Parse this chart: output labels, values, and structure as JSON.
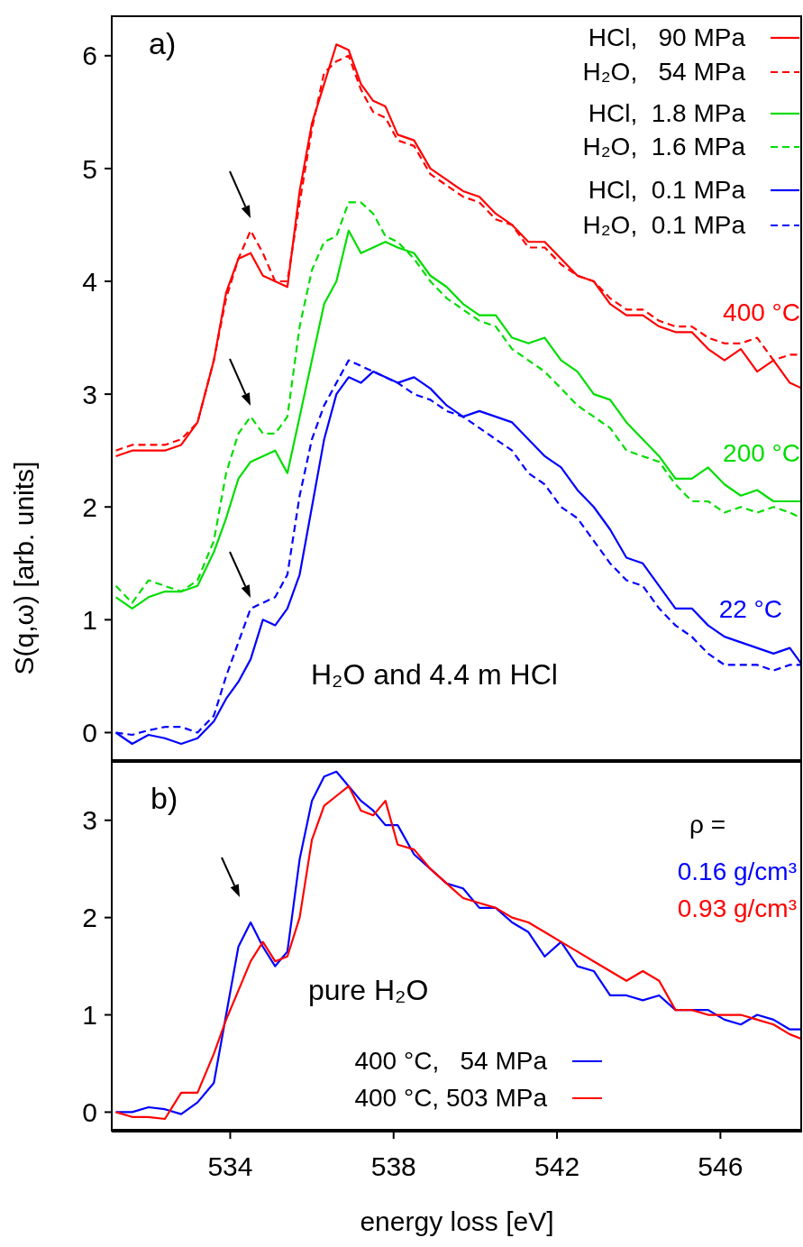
{
  "chart_data": [
    {
      "type": "line",
      "ylabel": "S(q,ω) [arb. units]",
      "xlim": [
        531.1,
        548
      ],
      "xticks": [
        534,
        538,
        542,
        546
      ],
      "ylim": [
        -0.26,
        6.35
      ],
      "yticks": [
        0,
        1,
        2,
        3,
        4,
        5,
        6
      ],
      "tick_labels": "y",
      "legend": "top right",
      "x": [
        531.2,
        531.6,
        532.0,
        532.4,
        532.8,
        533.2,
        533.6,
        533.9,
        534.2,
        534.5,
        534.8,
        535.1,
        535.4,
        535.7,
        536.0,
        536.3,
        536.6,
        536.9,
        537.2,
        537.5,
        537.8,
        538.1,
        538.5,
        538.9,
        539.3,
        539.7,
        540.1,
        540.5,
        540.9,
        541.3,
        541.7,
        542.1,
        542.5,
        542.9,
        543.3,
        543.7,
        544.1,
        544.5,
        544.9,
        545.3,
        545.7,
        546.1,
        546.5,
        546.9,
        547.3,
        547.7,
        548.0
      ],
      "annotations": [
        "a)",
        "400 °C",
        "200 °C",
        "22 °C",
        "H₂O and 4.4 m HCl"
      ],
      "series": [
        {
          "name": "HCl,   90 MPa",
          "color": "#ff0000",
          "line_style": "solid",
          "values": [
            2.45,
            2.5,
            2.5,
            2.5,
            2.55,
            2.75,
            3.3,
            3.9,
            4.2,
            4.25,
            4.05,
            4.0,
            3.95,
            4.8,
            5.4,
            5.75,
            6.1,
            6.05,
            5.75,
            5.6,
            5.55,
            5.3,
            5.25,
            5.0,
            4.9,
            4.8,
            4.75,
            4.6,
            4.5,
            4.35,
            4.35,
            4.2,
            4.05,
            4.0,
            3.8,
            3.7,
            3.7,
            3.6,
            3.55,
            3.55,
            3.4,
            3.3,
            3.4,
            3.2,
            3.3,
            3.1,
            3.05
          ]
        },
        {
          "name": "H₂O,   54 MPa",
          "color": "#ff0000",
          "line_style": "dashed",
          "values": [
            2.5,
            2.55,
            2.55,
            2.55,
            2.6,
            2.75,
            3.3,
            3.85,
            4.2,
            4.45,
            4.25,
            4.0,
            4.0,
            4.7,
            5.35,
            5.85,
            5.95,
            6.0,
            5.7,
            5.5,
            5.45,
            5.25,
            5.2,
            4.95,
            4.85,
            4.75,
            4.7,
            4.55,
            4.5,
            4.3,
            4.3,
            4.15,
            4.05,
            4.0,
            3.85,
            3.75,
            3.75,
            3.65,
            3.6,
            3.6,
            3.5,
            3.45,
            3.45,
            3.5,
            3.3,
            3.35,
            3.35
          ]
        },
        {
          "name": "HCl,  1.8 MPa",
          "color": "#00dd00",
          "line_style": "solid",
          "values": [
            1.2,
            1.1,
            1.2,
            1.25,
            1.25,
            1.3,
            1.6,
            1.9,
            2.25,
            2.4,
            2.45,
            2.5,
            2.3,
            2.8,
            3.3,
            3.8,
            4.0,
            4.45,
            4.25,
            4.3,
            4.35,
            4.3,
            4.25,
            4.05,
            3.95,
            3.8,
            3.7,
            3.7,
            3.5,
            3.45,
            3.5,
            3.3,
            3.2,
            3.0,
            2.95,
            2.75,
            2.6,
            2.45,
            2.25,
            2.25,
            2.35,
            2.2,
            2.1,
            2.15,
            2.05,
            2.05,
            2.05
          ]
        },
        {
          "name": "H₂O,  1.6 MPa",
          "color": "#00dd00",
          "line_style": "dashed",
          "values": [
            1.3,
            1.15,
            1.35,
            1.3,
            1.25,
            1.35,
            1.7,
            2.3,
            2.65,
            2.8,
            2.65,
            2.65,
            2.8,
            3.6,
            4.1,
            4.35,
            4.4,
            4.7,
            4.7,
            4.6,
            4.4,
            4.35,
            4.2,
            4.0,
            3.85,
            3.75,
            3.65,
            3.6,
            3.4,
            3.3,
            3.2,
            3.05,
            2.9,
            2.8,
            2.7,
            2.5,
            2.45,
            2.4,
            2.2,
            2.05,
            2.05,
            1.95,
            2.0,
            1.95,
            2.0,
            1.95,
            1.9
          ]
        },
        {
          "name": "HCl,  0.1 MPa",
          "color": "#0000ff",
          "line_style": "solid",
          "values": [
            0.0,
            -0.1,
            -0.02,
            -0.05,
            -0.1,
            -0.05,
            0.1,
            0.3,
            0.45,
            0.65,
            1.0,
            0.95,
            1.1,
            1.4,
            2.0,
            2.6,
            3.0,
            3.15,
            3.1,
            3.2,
            3.15,
            3.1,
            3.15,
            3.05,
            2.9,
            2.8,
            2.85,
            2.8,
            2.75,
            2.6,
            2.45,
            2.35,
            2.15,
            2.0,
            1.8,
            1.55,
            1.5,
            1.3,
            1.1,
            1.1,
            0.95,
            0.85,
            0.8,
            0.75,
            0.7,
            0.75,
            0.6
          ]
        },
        {
          "name": "H₂O,  0.1 MPa",
          "color": "#0000ff",
          "line_style": "dashed",
          "values": [
            0.0,
            -0.02,
            0.02,
            0.05,
            0.05,
            0.0,
            0.15,
            0.5,
            0.8,
            1.1,
            1.15,
            1.2,
            1.4,
            2.1,
            2.6,
            2.9,
            3.1,
            3.3,
            3.25,
            3.2,
            3.15,
            3.1,
            3.0,
            2.95,
            2.85,
            2.8,
            2.7,
            2.6,
            2.5,
            2.3,
            2.2,
            2.0,
            1.9,
            1.7,
            1.5,
            1.35,
            1.3,
            1.1,
            0.95,
            0.85,
            0.7,
            0.6,
            0.6,
            0.6,
            0.55,
            0.6,
            0.6
          ]
        }
      ]
    },
    {
      "type": "line",
      "xlabel": "energy loss [eV]",
      "xlim": [
        531.1,
        548
      ],
      "xticks": [
        534,
        538,
        542,
        546
      ],
      "ylim": [
        -0.2,
        3.6
      ],
      "yticks": [
        0,
        1,
        2,
        3
      ],
      "legend": "bottom",
      "x": [
        531.2,
        531.6,
        532.0,
        532.4,
        532.8,
        533.2,
        533.6,
        533.9,
        534.2,
        534.5,
        534.8,
        535.1,
        535.4,
        535.7,
        536.0,
        536.3,
        536.6,
        536.9,
        537.2,
        537.5,
        537.8,
        538.1,
        538.5,
        538.9,
        539.3,
        539.7,
        540.1,
        540.5,
        540.9,
        541.3,
        541.7,
        542.1,
        542.5,
        542.9,
        543.3,
        543.7,
        544.1,
        544.5,
        544.9,
        545.3,
        545.7,
        546.1,
        546.5,
        546.9,
        547.3,
        547.7,
        548.0
      ],
      "annotations": [
        "b)",
        "ρ =",
        "0.16 g/cm³",
        "0.93 g/cm³",
        "pure H₂O"
      ],
      "series": [
        {
          "name": "400 °C,   54 MPa",
          "color": "#0000ff",
          "line_style": "solid",
          "values": [
            0.0,
            0.0,
            0.05,
            0.03,
            -0.02,
            0.1,
            0.3,
            1.0,
            1.7,
            1.95,
            1.7,
            1.5,
            1.65,
            2.6,
            3.2,
            3.45,
            3.5,
            3.35,
            3.2,
            3.1,
            2.95,
            2.95,
            2.65,
            2.5,
            2.35,
            2.3,
            2.1,
            2.1,
            1.95,
            1.85,
            1.6,
            1.75,
            1.5,
            1.45,
            1.2,
            1.2,
            1.15,
            1.2,
            1.05,
            1.05,
            1.05,
            0.95,
            0.9,
            1.0,
            0.95,
            0.85,
            0.85
          ]
        },
        {
          "name": "400 °C, 503 MPa",
          "color": "#ff0000",
          "line_style": "solid",
          "values": [
            0.0,
            -0.05,
            -0.05,
            -0.07,
            0.2,
            0.2,
            0.6,
            0.95,
            1.25,
            1.55,
            1.75,
            1.55,
            1.6,
            2.0,
            2.8,
            3.15,
            3.25,
            3.35,
            3.1,
            3.05,
            3.2,
            2.75,
            2.7,
            2.5,
            2.35,
            2.2,
            2.15,
            2.1,
            2.0,
            1.95,
            1.85,
            1.75,
            1.65,
            1.55,
            1.45,
            1.35,
            1.45,
            1.35,
            1.05,
            1.05,
            1.0,
            1.0,
            1.0,
            0.95,
            0.9,
            0.8,
            0.75
          ]
        }
      ]
    }
  ]
}
